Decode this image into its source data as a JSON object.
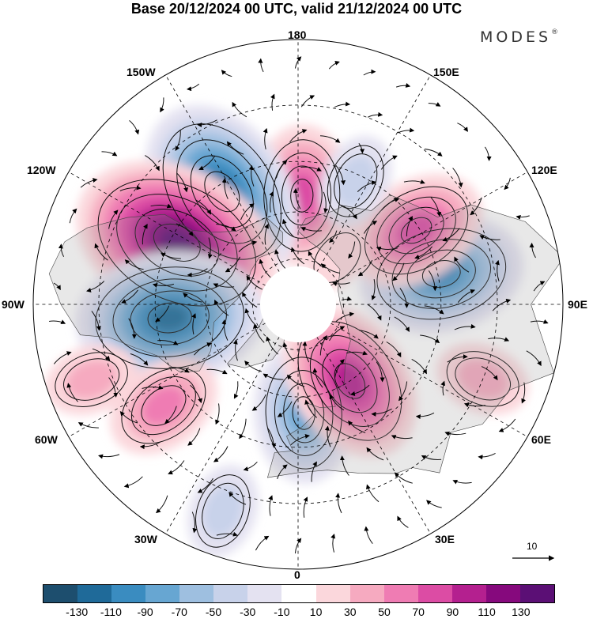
{
  "title": "Base 20/12/2024 00 UTC, valid 21/12/2024 00 UTC",
  "brand": "MODES",
  "brand_mark": "®",
  "longitude_labels": {
    "top": "180",
    "bottom": "0",
    "left": "90W",
    "right": "90E",
    "upper_left_1": "150W",
    "upper_left_2": "120W",
    "upper_right_1": "150E",
    "upper_right_2": "120E",
    "lower_left_1": "60W",
    "lower_left_2": "30W",
    "lower_right_1": "60E",
    "lower_right_2": "30E"
  },
  "vector_scale": {
    "label": "10"
  },
  "colorbar": {
    "colors": [
      "#1d4e6e",
      "#1f6a99",
      "#3a8cc0",
      "#67a6d2",
      "#9ebfe0",
      "#c8d2ea",
      "#e4e2f1",
      "#ffffff",
      "#fbd7dc",
      "#f6aac0",
      "#ef7cb3",
      "#dc4ca4",
      "#b4208f",
      "#86097d",
      "#5b0f75"
    ],
    "tick_labels": [
      "-130",
      "-110",
      "-90",
      "-70",
      "-50",
      "-30",
      "-10",
      "10",
      "30",
      "50",
      "70",
      "90",
      "110",
      "130"
    ]
  },
  "map": {
    "projection": "north-polar-stereographic",
    "field": "geopotential height anomaly with wind vectors",
    "anomalies": [
      {
        "lon": 178,
        "lat": 55,
        "value": 70
      },
      {
        "lon": -146,
        "lat": 47,
        "value": -110
      },
      {
        "lon": -117,
        "lat": 47,
        "value": 130
      },
      {
        "lon": -84,
        "lat": 49,
        "value": -110
      },
      {
        "lon": -53,
        "lat": 38,
        "value": 50
      },
      {
        "lon": -70,
        "lat": 25,
        "value": 30
      },
      {
        "lon": 3,
        "lat": 55,
        "value": -70
      },
      {
        "lon": 34,
        "lat": 60,
        "value": 90
      },
      {
        "lon": 68,
        "lat": 30,
        "value": 30
      },
      {
        "lon": 102,
        "lat": 44,
        "value": -90
      },
      {
        "lon": 122,
        "lat": 46,
        "value": 70
      },
      {
        "lon": 155,
        "lat": 47,
        "value": -30
      },
      {
        "lon": -20,
        "lat": 25,
        "value": -30
      },
      {
        "lon": 140,
        "lat": 70,
        "value": 10
      }
    ]
  }
}
